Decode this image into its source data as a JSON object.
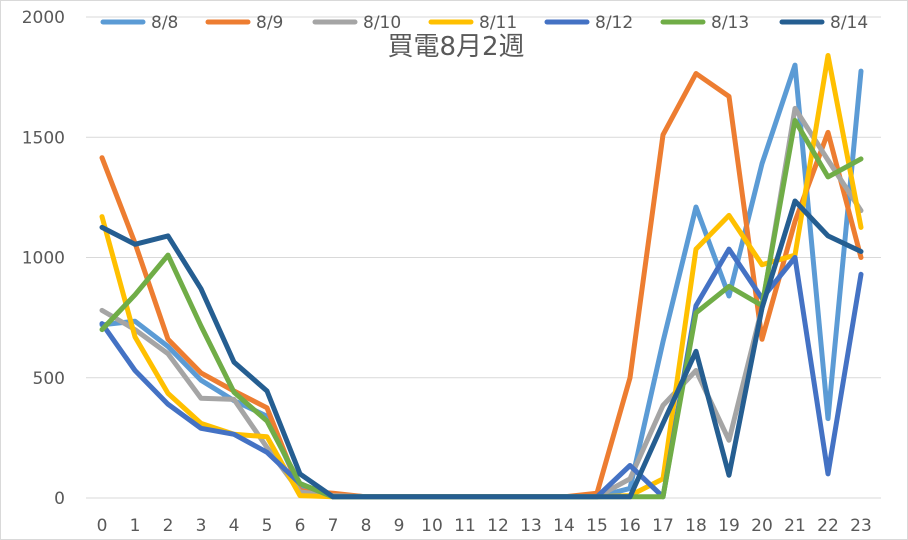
{
  "chart_data": {
    "type": "line",
    "title": "買電8月2週",
    "legend_position": "top",
    "grid": true,
    "ylim": [
      0,
      2000
    ],
    "yticks": [
      "0",
      "500",
      "1000",
      "1500",
      "2000"
    ],
    "x": [
      "0",
      "1",
      "2",
      "3",
      "4",
      "5",
      "6",
      "7",
      "8",
      "9",
      "10",
      "11",
      "12",
      "13",
      "14",
      "15",
      "16",
      "17",
      "18",
      "19",
      "20",
      "21",
      "22",
      "23"
    ],
    "series": [
      {
        "name": "8/8",
        "color": "#5b9bd5",
        "values": [
          720,
          735,
          630,
          490,
          405,
          340,
          40,
          15,
          5,
          5,
          5,
          5,
          5,
          5,
          5,
          5,
          40,
          650,
          1210,
          840,
          1390,
          1800,
          330,
          1775
        ]
      },
      {
        "name": "8/9",
        "color": "#ed7d31",
        "values": [
          1415,
          1060,
          660,
          520,
          445,
          375,
          30,
          20,
          5,
          5,
          5,
          5,
          5,
          5,
          5,
          20,
          500,
          1510,
          1765,
          1670,
          660,
          1150,
          1520,
          1000
        ]
      },
      {
        "name": "8/10",
        "color": "#a5a5a5",
        "values": [
          780,
          700,
          600,
          415,
          410,
          210,
          25,
          10,
          5,
          5,
          5,
          5,
          5,
          5,
          5,
          5,
          80,
          385,
          530,
          240,
          790,
          1620,
          1405,
          1195
        ]
      },
      {
        "name": "8/11",
        "color": "#ffc000",
        "values": [
          1170,
          670,
          435,
          310,
          265,
          255,
          10,
          5,
          5,
          5,
          5,
          5,
          5,
          5,
          5,
          5,
          10,
          80,
          1035,
          1175,
          970,
          1010,
          1840,
          1125
        ]
      },
      {
        "name": "8/12",
        "color": "#4472c4",
        "values": [
          725,
          530,
          390,
          290,
          265,
          190,
          60,
          5,
          5,
          5,
          5,
          5,
          5,
          5,
          5,
          5,
          135,
          5,
          800,
          1035,
          830,
          1000,
          100,
          930
        ]
      },
      {
        "name": "8/13",
        "color": "#70ad47",
        "values": [
          700,
          845,
          1010,
          715,
          440,
          320,
          60,
          5,
          5,
          5,
          5,
          5,
          5,
          5,
          5,
          5,
          5,
          5,
          770,
          880,
          800,
          1570,
          1335,
          1410
        ]
      },
      {
        "name": "8/14",
        "color": "#255e91",
        "values": [
          1125,
          1055,
          1090,
          870,
          565,
          445,
          100,
          5,
          5,
          5,
          5,
          5,
          5,
          5,
          5,
          5,
          5,
          310,
          610,
          95,
          790,
          1235,
          1090,
          1025
        ]
      }
    ]
  }
}
